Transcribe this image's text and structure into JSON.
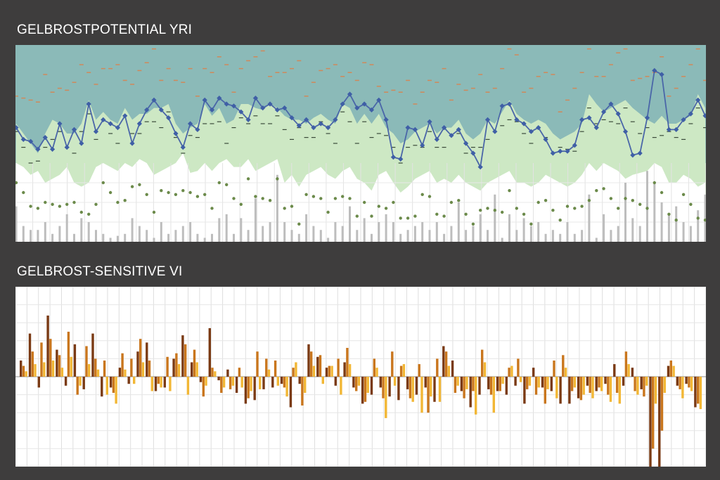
{
  "chart_data": [
    {
      "type": "line",
      "title": "GELBROSTPOTENTIAL YRI",
      "xlabel": "",
      "ylabel": "",
      "ylim": [
        0,
        100
      ],
      "grid": true,
      "legend": "none",
      "colors": {
        "background_band": "#8bbab8",
        "green_band": "#cde8c4",
        "lower_area": "#ffffff",
        "line": "#4a66a8",
        "markers": "#3f5fa6",
        "orange_ticks": "#d0895a",
        "dark_ticks": "#3a4a3a",
        "dots": "#6b8a4a",
        "bars": "#bdbdbd"
      },
      "series": [
        {
          "name": "",
          "values": [
            58,
            52,
            51,
            47,
            53,
            47,
            60,
            48,
            57,
            50,
            70,
            56,
            62,
            60,
            58,
            64,
            50,
            60,
            67,
            72,
            67,
            63,
            55,
            48,
            60,
            57,
            72,
            67,
            73,
            70,
            69,
            66,
            62,
            73,
            68,
            70,
            67,
            68,
            63,
            59,
            62,
            58,
            60,
            58,
            62,
            70,
            75,
            68,
            70,
            67,
            72,
            62,
            43,
            42,
            58,
            57,
            49,
            61,
            52,
            58,
            54,
            57,
            50,
            45,
            38,
            62,
            56,
            69,
            70,
            62,
            60,
            56,
            58,
            52,
            45,
            46,
            46,
            49,
            62,
            63,
            58,
            66,
            70,
            65,
            56,
            44,
            45,
            63,
            87,
            85,
            57,
            57,
            62,
            65,
            72,
            64
          ]
        },
        {
          "name": "",
          "values": [
            60,
            55,
            50,
            45,
            55,
            62,
            60,
            55,
            55,
            60,
            72,
            62,
            66,
            62,
            60,
            68,
            62,
            65,
            65,
            68,
            68,
            70,
            60,
            55,
            58,
            60,
            70,
            64,
            68,
            60,
            62,
            70,
            70,
            68,
            67,
            70,
            68,
            64,
            62,
            62,
            60,
            63,
            65,
            62,
            60,
            70,
            68,
            60,
            65,
            60,
            65,
            58,
            55,
            50,
            52,
            56,
            58,
            60,
            55,
            58,
            58,
            62,
            55,
            52,
            55,
            62,
            60,
            66,
            72,
            65,
            62,
            60,
            62,
            60,
            55,
            52,
            54,
            56,
            60,
            75,
            70,
            66,
            68,
            70,
            72,
            68,
            65,
            62,
            60,
            64,
            60,
            60,
            62,
            64,
            75,
            68
          ]
        },
        {
          "name": "",
          "values": [
            40,
            38,
            34,
            36,
            30,
            32,
            34,
            38,
            30,
            28,
            30,
            38,
            40,
            38,
            36,
            40,
            38,
            42,
            40,
            34,
            36,
            38,
            40,
            45,
            35,
            36,
            40,
            36,
            40,
            42,
            38,
            38,
            42,
            36,
            38,
            40,
            42,
            30,
            34,
            28,
            34,
            36,
            38,
            34,
            32,
            36,
            38,
            32,
            30,
            26,
            34,
            36,
            30,
            25,
            28,
            32,
            34,
            36,
            30,
            32,
            30,
            34,
            30,
            28,
            26,
            30,
            32,
            34,
            36,
            30,
            30,
            28,
            30,
            34,
            32,
            30,
            28,
            30,
            34,
            40,
            36,
            40,
            38,
            36,
            32,
            34,
            35,
            36,
            40,
            38,
            30,
            30,
            34,
            32,
            28,
            30
          ]
        },
        {
          "name": "",
          "values": [
            18,
            8,
            6,
            6,
            10,
            4,
            8,
            14,
            4,
            12,
            10,
            6,
            4,
            2,
            3,
            4,
            12,
            8,
            6,
            2,
            10,
            4,
            6,
            8,
            10,
            4,
            2,
            4,
            12,
            14,
            4,
            12,
            6,
            22,
            8,
            10,
            34,
            10,
            6,
            4,
            14,
            8,
            6,
            2,
            10,
            8,
            18,
            6,
            12,
            4,
            10,
            14,
            10,
            4,
            6,
            8,
            10,
            6,
            10,
            4,
            8,
            20,
            6,
            8,
            14,
            6,
            24,
            2,
            14,
            6,
            12,
            8,
            10,
            4,
            6,
            4,
            10,
            4,
            6,
            24,
            2,
            14,
            6,
            8,
            30,
            12,
            8,
            36,
            30,
            20,
            14,
            18,
            10,
            8,
            16,
            24
          ]
        }
      ],
      "x": [
        1,
        2,
        3,
        4,
        5,
        6,
        7,
        8,
        9,
        10,
        11,
        12,
        13,
        14,
        15,
        16,
        17,
        18,
        19,
        20,
        21,
        22,
        23,
        24,
        25,
        26,
        27,
        28,
        29,
        30,
        31,
        32,
        33,
        34,
        35,
        36,
        37,
        38,
        39,
        40,
        41,
        42,
        43,
        44,
        45,
        46,
        47,
        48,
        49,
        50,
        51,
        52,
        53,
        54,
        55,
        56,
        57,
        58,
        59,
        60,
        61,
        62,
        63,
        64,
        65,
        66,
        67,
        68,
        69,
        70,
        71,
        72,
        73,
        74,
        75,
        76,
        77,
        78,
        79,
        80,
        81,
        82,
        83,
        84,
        85,
        86,
        87,
        88,
        89,
        90,
        91,
        92,
        93,
        94,
        95,
        96
      ]
    },
    {
      "type": "bar",
      "title": "GELBROST-SENSITIVE VI",
      "xlabel": "",
      "ylabel": "",
      "ylim": [
        -100,
        100
      ],
      "grid": true,
      "legend": "none",
      "colors": {
        "series_1": "#7a3a14",
        "series_2": "#c9761d",
        "series_3": "#f2b735",
        "axis_line": "#8c8c8c"
      },
      "series": [
        {
          "name": "",
          "values": [
            18,
            48,
            -12,
            68,
            30,
            -10,
            36,
            -14,
            48,
            -22,
            -12,
            10,
            -8,
            28,
            38,
            -16,
            -12,
            20,
            46,
            16,
            -6,
            54,
            -4,
            8,
            -18,
            -30,
            -26,
            -14,
            -12,
            -8,
            -34,
            -8,
            36,
            22,
            10,
            -10,
            16,
            -12,
            -30,
            -20,
            -12,
            -22,
            -26,
            -14,
            -20,
            -12,
            -28,
            34,
            18,
            -16,
            -34,
            -20,
            -14,
            -16,
            -20,
            -10,
            -30,
            10,
            -12,
            -16,
            -30,
            -30,
            -24,
            -10,
            -16,
            -8,
            14,
            -10,
            10,
            -14,
            -100,
            -100,
            12,
            -10,
            -8,
            -34
          ]
        },
        {
          "name": "",
          "values": [
            12,
            28,
            38,
            42,
            24,
            50,
            -20,
            34,
            20,
            18,
            -18,
            26,
            20,
            42,
            18,
            -8,
            22,
            26,
            36,
            30,
            -22,
            10,
            -18,
            -14,
            10,
            -24,
            28,
            20,
            18,
            -12,
            10,
            -32,
            28,
            24,
            12,
            20,
            32,
            -16,
            -28,
            20,
            -24,
            28,
            12,
            -24,
            14,
            -40,
            20,
            28,
            -18,
            -24,
            -16,
            30,
            -20,
            -16,
            10,
            20,
            -14,
            -20,
            -30,
            18,
            24,
            -16,
            -26,
            -18,
            -12,
            -20,
            -18,
            28,
            -16,
            -22,
            -80,
            -60,
            18,
            -14,
            -12,
            -30
          ]
        },
        {
          "name": "",
          "values": [
            6,
            14,
            16,
            18,
            10,
            22,
            -10,
            14,
            8,
            -20,
            -30,
            8,
            -8,
            16,
            -16,
            -12,
            -16,
            14,
            -20,
            16,
            -10,
            6,
            -12,
            -10,
            -12,
            -16,
            -14,
            8,
            -10,
            -22,
            16,
            -18,
            12,
            -8,
            12,
            -20,
            14,
            -10,
            -18,
            10,
            -46,
            -10,
            14,
            -28,
            -40,
            -22,
            -28,
            12,
            -10,
            -14,
            -42,
            16,
            -40,
            -8,
            12,
            -6,
            -10,
            -12,
            -14,
            -24,
            10,
            -12,
            -20,
            -24,
            -16,
            -28,
            -30,
            14,
            -20,
            -10,
            -30,
            -18,
            12,
            -24,
            -16,
            -36
          ]
        }
      ],
      "categories": [
        1,
        2,
        3,
        4,
        5,
        6,
        7,
        8,
        9,
        10,
        11,
        12,
        13,
        14,
        15,
        16,
        17,
        18,
        19,
        20,
        21,
        22,
        23,
        24,
        25,
        26,
        27,
        28,
        29,
        30,
        31,
        32,
        33,
        34,
        35,
        36,
        37,
        38,
        39,
        40,
        41,
        42,
        43,
        44,
        45,
        46,
        47,
        48,
        49,
        50,
        51,
        52,
        53,
        54,
        55,
        56,
        57,
        58,
        59,
        60,
        61,
        62,
        63,
        64,
        65,
        66,
        67,
        68,
        69,
        70,
        71,
        72,
        73,
        74,
        75,
        76
      ]
    }
  ]
}
